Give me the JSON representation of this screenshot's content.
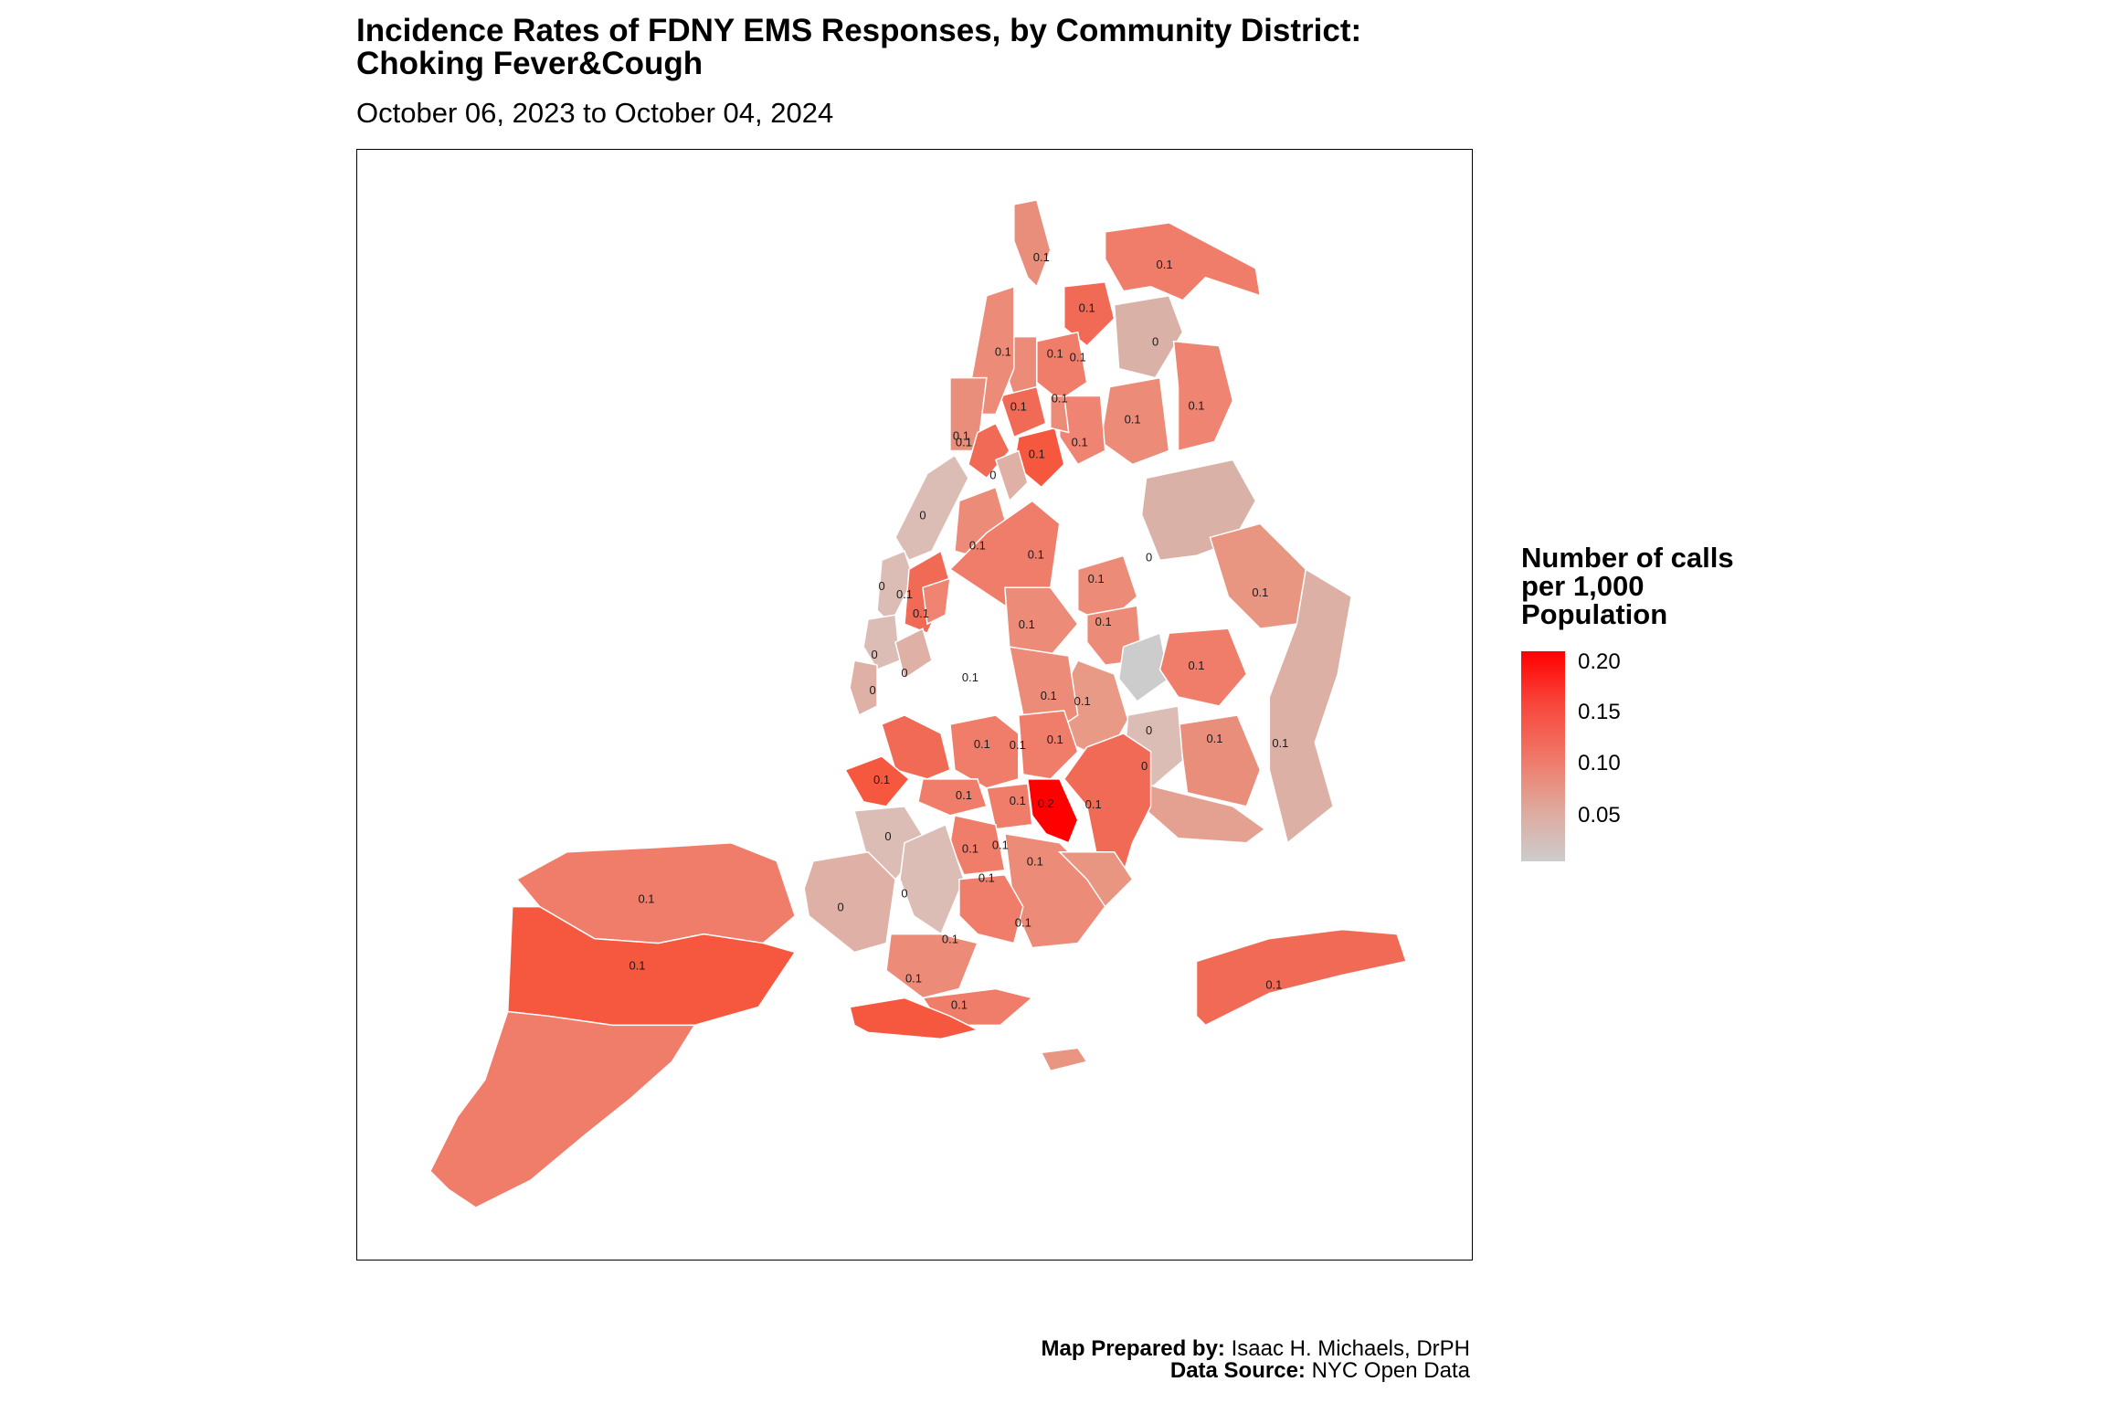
{
  "title_line1": "Incidence Rates of FDNY EMS Responses, by Community District:",
  "title_line2": "Choking Fever&Cough",
  "subtitle": "October 06, 2023 to October 04, 2024",
  "legend": {
    "title_lines": [
      "Number of calls",
      "per 1,000",
      "Population"
    ],
    "ticks": [
      "0.20",
      "0.15",
      "0.10",
      "0.05"
    ],
    "colors": {
      "high": "#ff0000",
      "mid": "#ee8070",
      "low": "#cccccc"
    }
  },
  "credits": {
    "prepared_label": "Map Prepared by:",
    "prepared_value": "Isaac H. Michaels, DrPH",
    "source_label": "Data Source:",
    "source_value": "NYC Open Data"
  },
  "district_labels": [
    "0.1",
    "0.1",
    "0.1",
    "0",
    "0.1",
    "0.1",
    "0.1",
    "0.1",
    "0.1",
    "0.1",
    "0.1",
    "0.1",
    "0.1",
    "0",
    "0.1",
    "0",
    "0.1",
    "0",
    "0.1",
    "0.1",
    "0",
    "0.1",
    "0",
    "0.1",
    "0",
    "0.1",
    "0.1",
    "0.1",
    "0.1",
    "0.1",
    "0",
    "0.1",
    "0.1",
    "0.1",
    "0.1",
    "0",
    "0.1",
    "0.1",
    "0.1",
    "0.1",
    "0.1",
    "0",
    "0",
    "0.2",
    "0.1",
    "0.1",
    "0.1",
    "0.1",
    "0",
    "0.1",
    "0",
    "0.1",
    "0.1",
    "0.1",
    "0.1",
    "0.1",
    "0.1",
    "0.1",
    "0.1",
    "0.1"
  ]
}
